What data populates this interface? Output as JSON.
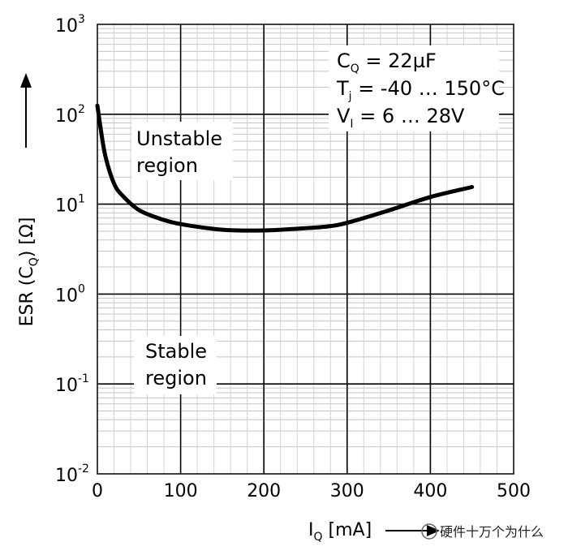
{
  "chart_data": {
    "type": "line",
    "x_axis": {
      "label_main": "I",
      "label_sub": "Q",
      "label_unit": " [mA]",
      "range": [
        0,
        500
      ],
      "ticks": [
        "0",
        "100",
        "200",
        "300",
        "400",
        "500"
      ]
    },
    "y_axis": {
      "label_prefix": "ESR (C",
      "label_sub": "Q",
      "label_suffix": ") [Ω]",
      "scale": "log",
      "range": [
        0.01,
        1000
      ],
      "ticks": [
        {
          "base": "10",
          "exp": "3",
          "value": 1000
        },
        {
          "base": "10",
          "exp": "2",
          "value": 100
        },
        {
          "base": "10",
          "exp": "1",
          "value": 10
        },
        {
          "base": "10",
          "exp": "0",
          "value": 1
        },
        {
          "base": "10",
          "exp": "-1",
          "value": 0.1
        },
        {
          "base": "10",
          "exp": "-2",
          "value": 0.01
        }
      ]
    },
    "grid": true,
    "series": [
      {
        "x": [
          0,
          5,
          10,
          20,
          30,
          50,
          75,
          100,
          150,
          200,
          250,
          280,
          300,
          350,
          400,
          450
        ],
        "y": [
          125,
          60,
          33,
          17,
          12.5,
          8.6,
          6.9,
          6.0,
          5.2,
          5.1,
          5.4,
          5.7,
          6.2,
          8.5,
          12,
          15.5
        ]
      }
    ],
    "annotations": {
      "conditions": [
        {
          "main": "C",
          "sub": "Q",
          "rest": " = 22µF"
        },
        {
          "main": "T",
          "sub": "j",
          "rest": " = -40 … 150°C"
        },
        {
          "main": "V",
          "sub": "I",
          "rest": " = 6 … 28V"
        }
      ],
      "unstable": [
        "Unstable",
        "region"
      ],
      "stable": [
        "Stable",
        "region"
      ]
    }
  },
  "watermark": "硬件十万个为什么"
}
